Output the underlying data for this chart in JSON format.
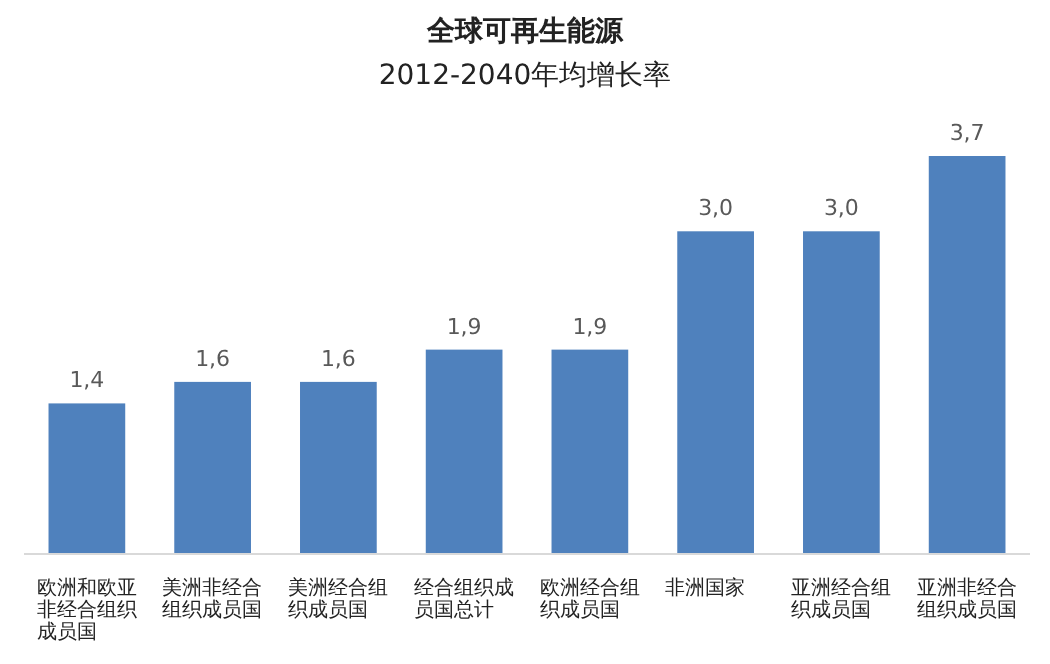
{
  "chart_data": {
    "type": "bar",
    "title": "全球可再生能源",
    "subtitle": "2012-2040年均增长率",
    "categories": [
      "欧洲和欧亚非经合组织成员国",
      "美洲非经合组织成员国",
      "美洲经合组织成员国",
      "经合组织成员国总计",
      "欧洲经合组织成员国",
      "非洲国家",
      "亚洲经合组织成员国",
      "亚洲非经合组织成员国"
    ],
    "values": [
      1.4,
      1.6,
      1.6,
      1.9,
      1.9,
      3.0,
      3.0,
      3.7
    ],
    "value_labels": [
      "1,4",
      "1,6",
      "1,6",
      "1,9",
      "1,9",
      "3,0",
      "3,0",
      "3,7"
    ],
    "color": "#4f81bd",
    "relative": false
  }
}
